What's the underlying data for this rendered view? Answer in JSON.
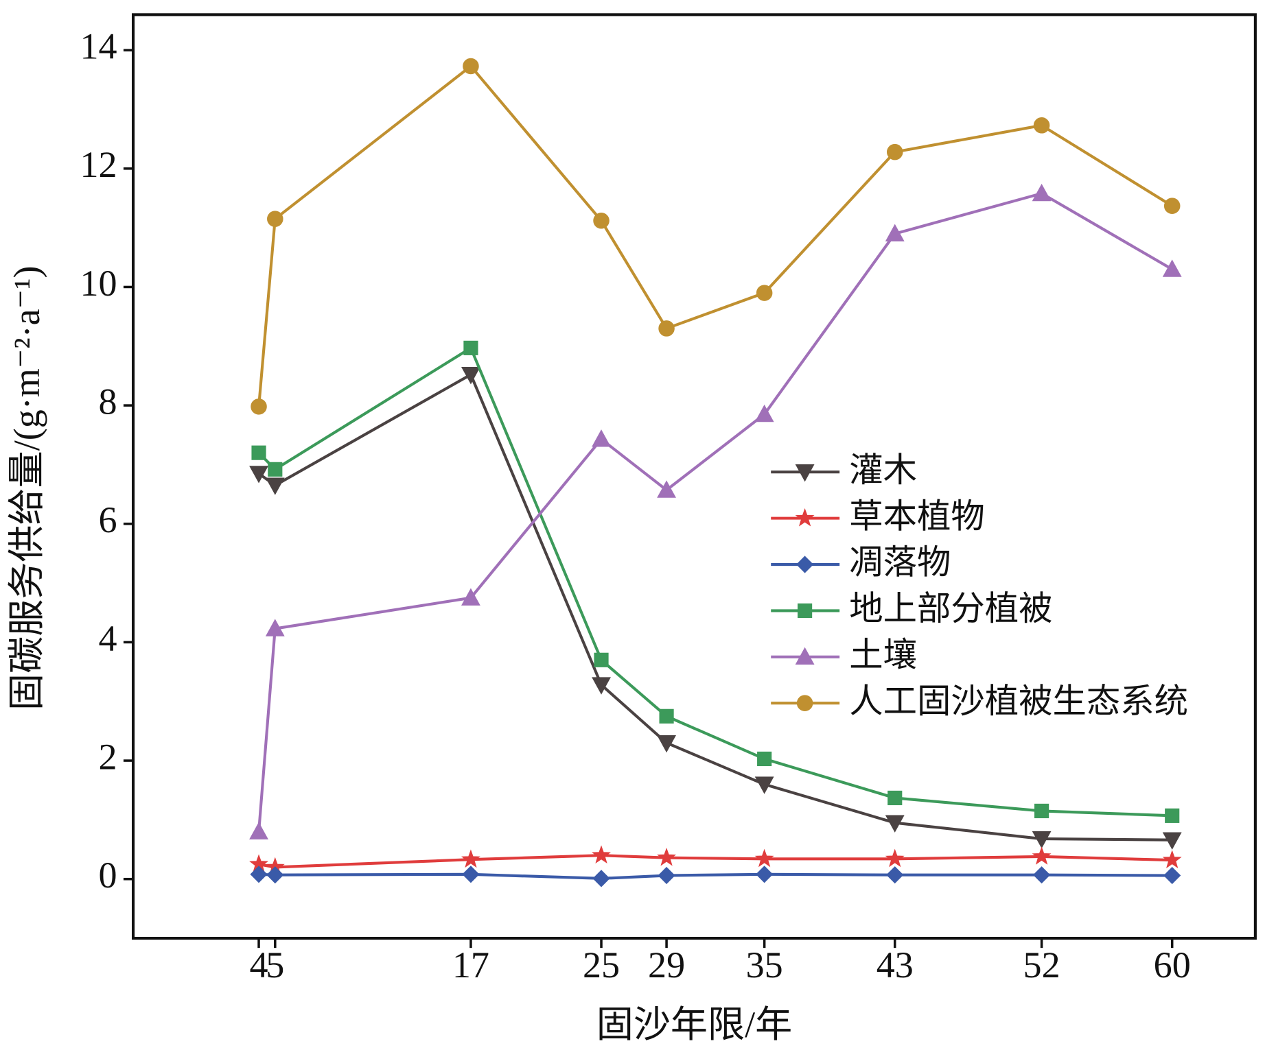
{
  "chart_data": {
    "type": "line",
    "x_label": "固沙年限/年",
    "y_label": "固碳服务供给量/(g·m⁻²·a⁻¹)",
    "x": [
      4,
      5,
      17,
      25,
      29,
      35,
      43,
      52,
      60
    ],
    "xlim": [
      -3.7,
      65.1
    ],
    "xticks": [
      4,
      5,
      17,
      25,
      29,
      35,
      43,
      52,
      60
    ],
    "ylim": [
      -1,
      14.6
    ],
    "yticks": [
      0,
      2,
      4,
      6,
      8,
      10,
      12,
      14
    ],
    "legend": "right",
    "series": [
      {
        "name": "灌木",
        "color": "#4a4242",
        "marker": "triangle-down",
        "values": [
          6.85,
          6.65,
          8.52,
          3.28,
          2.3,
          1.6,
          0.95,
          0.68,
          0.66
        ]
      },
      {
        "name": "草本植物",
        "color": "#e03c3c",
        "marker": "star",
        "values": [
          0.25,
          0.2,
          0.33,
          0.4,
          0.36,
          0.34,
          0.34,
          0.38,
          0.32
        ]
      },
      {
        "name": "凋落物",
        "color": "#3a5aa8",
        "marker": "diamond",
        "values": [
          0.08,
          0.07,
          0.08,
          0.01,
          0.06,
          0.08,
          0.07,
          0.07,
          0.06
        ]
      },
      {
        "name": "地上部分植被",
        "color": "#3c9a5a",
        "marker": "square",
        "values": [
          7.2,
          6.92,
          8.97,
          3.7,
          2.75,
          2.03,
          1.37,
          1.15,
          1.07
        ]
      },
      {
        "name": "土壤",
        "color": "#a070b8",
        "marker": "triangle-up",
        "values": [
          0.8,
          4.23,
          4.75,
          7.43,
          6.57,
          7.85,
          10.9,
          11.58,
          10.3
        ]
      },
      {
        "name": "人工固沙植被生态系统",
        "color": "#c09030",
        "marker": "circle",
        "values": [
          7.98,
          11.15,
          13.73,
          11.12,
          9.3,
          9.9,
          12.28,
          12.73,
          11.37
        ]
      }
    ]
  }
}
